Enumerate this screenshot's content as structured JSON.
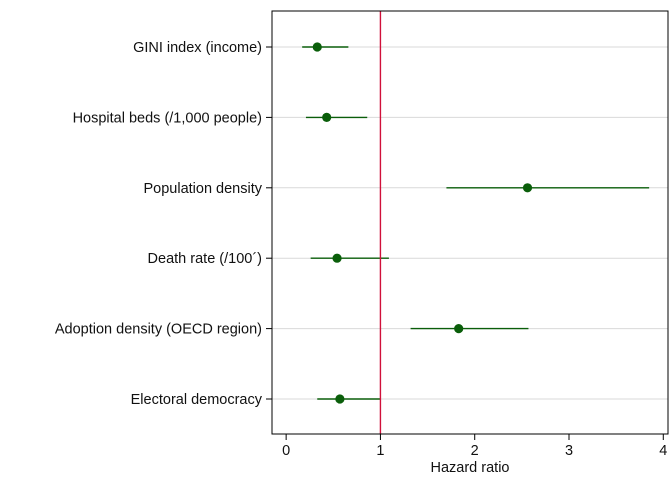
{
  "chart_data": {
    "type": "scatter",
    "subtype": "forest-plot",
    "xlabel": "Hazard ratio",
    "ylabel": "",
    "xlim": [
      -0.15,
      4.05
    ],
    "xticks": [
      0,
      1,
      2,
      3,
      4
    ],
    "reference_line": 1,
    "grid": "horizontal",
    "legend": "none",
    "categories": [
      "GINI index (income)",
      "Hospital beds (/1,000 people)",
      "Population density",
      "Death rate (/100´)",
      "Adoption density (OECD region)",
      "Electoral democracy"
    ],
    "series": [
      {
        "estimate": [
          0.33,
          0.43,
          2.56,
          0.54,
          1.83,
          0.57
        ],
        "ci_low": [
          0.17,
          0.21,
          1.7,
          0.26,
          1.32,
          0.33
        ],
        "ci_high": [
          0.66,
          0.86,
          3.85,
          1.09,
          2.57,
          1.0
        ]
      }
    ],
    "colors": {
      "point": "#0a5e0a",
      "ci_line": "#0a5e0a",
      "reference_line": "#d0103a",
      "gridline": "#d9d9d9",
      "frame": "#000000"
    }
  }
}
